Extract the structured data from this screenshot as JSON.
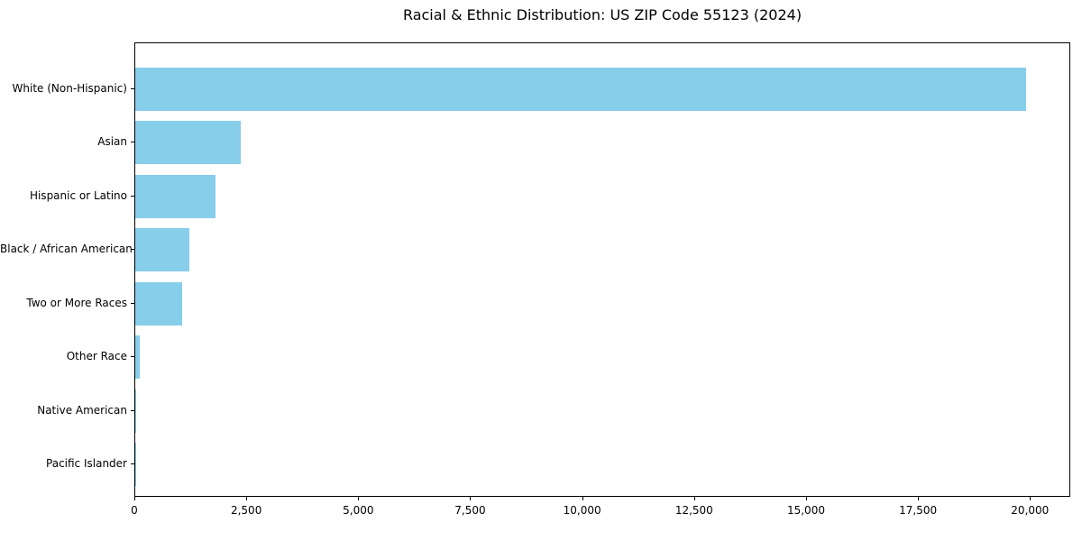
{
  "chart_data": {
    "type": "bar",
    "orientation": "horizontal",
    "title": "Racial & Ethnic Distribution: US ZIP Code 55123 (2024)",
    "categories": [
      "White (Non-Hispanic)",
      "Asian",
      "Hispanic or Latino",
      "Black / African American",
      "Two or More Races",
      "Other Race",
      "Native American",
      "Pacific Islander"
    ],
    "values": [
      19900,
      2350,
      1800,
      1200,
      1050,
      110,
      25,
      5
    ],
    "xlim": [
      0,
      20900
    ],
    "xticks": [
      0,
      2500,
      5000,
      7500,
      10000,
      12500,
      15000,
      17500,
      20000
    ],
    "xtick_labels": [
      "0",
      "2,500",
      "5,000",
      "7,500",
      "10,000",
      "12,500",
      "15,000",
      "17,500",
      "20,000"
    ],
    "bar_color": "#87CEEB",
    "grid": false,
    "legend": null,
    "xlabel": "",
    "ylabel": ""
  }
}
